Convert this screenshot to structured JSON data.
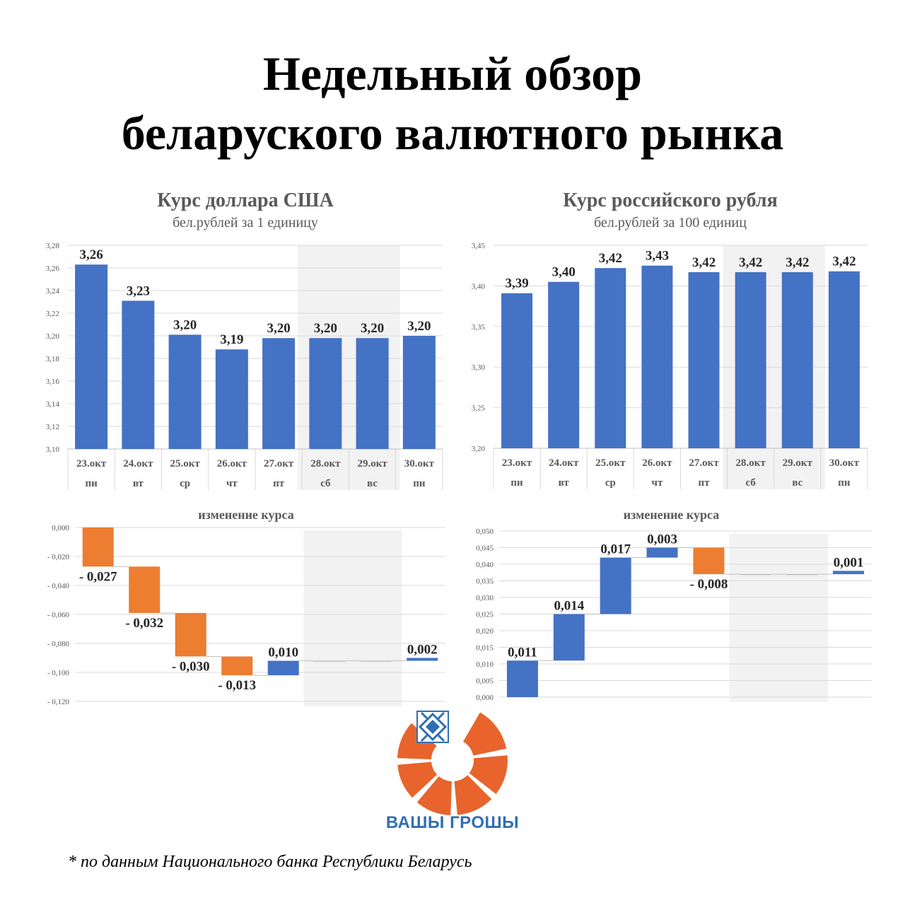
{
  "title_lines": [
    "Недельный обзор",
    "беларуского валютного рынка"
  ],
  "colors": {
    "bar": "#4472c4",
    "negative": "#ed7d31",
    "grid": "#d9d9d9",
    "weekend_shade": "#f2f2f2",
    "axis_text": "#595959",
    "logo_blue": "#2f6fb4",
    "logo_orange": "#e8642c"
  },
  "brand": {
    "name": "ВАШЫ ГРОШЫ"
  },
  "footnote": "* по данным Национального банка Республики Беларусь",
  "chart_data": [
    {
      "id": "usd-rate",
      "type": "bar",
      "title": "Курс доллара США",
      "subtitle": "бел.рублей за 1 единицу",
      "categories": [
        "23.окт",
        "24.окт",
        "25.окт",
        "26.окт",
        "27.окт",
        "28.окт",
        "29.окт",
        "30.окт"
      ],
      "weekdays": [
        "пн",
        "вт",
        "ср",
        "чт",
        "пт",
        "сб",
        "вс",
        "пн"
      ],
      "values": [
        3.263,
        3.231,
        3.201,
        3.188,
        3.198,
        3.198,
        3.198,
        3.2
      ],
      "labels": [
        "3,26",
        "3,23",
        "3,20",
        "3,19",
        "3,20",
        "3,20",
        "3,20",
        "3,20"
      ],
      "ylim": [
        3.1,
        3.28
      ],
      "yticks": [
        "3,10",
        "3,12",
        "3,14",
        "3,16",
        "3,18",
        "3,20",
        "3,22",
        "3,24",
        "3,26",
        "3,28"
      ],
      "ytick_values": [
        3.1,
        3.12,
        3.14,
        3.16,
        3.18,
        3.2,
        3.22,
        3.24,
        3.26,
        3.28
      ],
      "weekend_shaded": [
        5,
        6
      ],
      "grid": true
    },
    {
      "id": "rub-rate",
      "type": "bar",
      "title": "Курс российского рубля",
      "subtitle": "бел.рублей за 100 единиц",
      "categories": [
        "23.окт",
        "24.окт",
        "25.окт",
        "26.окт",
        "27.окт",
        "28.окт",
        "29.окт",
        "30.окт"
      ],
      "weekdays": [
        "пн",
        "вт",
        "ср",
        "чт",
        "пт",
        "сб",
        "вс",
        "пн"
      ],
      "values": [
        3.391,
        3.405,
        3.422,
        3.425,
        3.417,
        3.417,
        3.417,
        3.418
      ],
      "labels": [
        "3,39",
        "3,40",
        "3,42",
        "3,43",
        "3,42",
        "3,42",
        "3,42",
        "3,42"
      ],
      "ylim": [
        3.2,
        3.45
      ],
      "yticks": [
        "3,20",
        "3,25",
        "3,30",
        "3,35",
        "3,40",
        "3,45"
      ],
      "ytick_values": [
        3.2,
        3.25,
        3.3,
        3.35,
        3.4,
        3.45
      ],
      "weekend_shaded": [
        5,
        6
      ],
      "grid": true
    },
    {
      "id": "usd-change",
      "type": "waterfall",
      "title": "изменение курса",
      "changes": [
        -0.027,
        -0.032,
        -0.03,
        -0.013,
        0.01,
        0,
        0,
        0.002
      ],
      "labels": [
        "- 0,027",
        "- 0,032",
        "- 0,030",
        "- 0,013",
        "0,010",
        "",
        "",
        "0,002"
      ],
      "ylim": [
        -0.12,
        0
      ],
      "yticks": [
        "0,000",
        "- 0,020",
        "- 0,040",
        "- 0,060",
        "- 0,080",
        "- 0,100",
        "- 0,120"
      ],
      "ytick_values": [
        0,
        -0.02,
        -0.04,
        -0.06,
        -0.08,
        -0.1,
        -0.12
      ],
      "weekend_shaded": [
        5,
        6
      ],
      "grid": true
    },
    {
      "id": "rub-change",
      "type": "waterfall",
      "title": "изменение курса",
      "changes": [
        0.011,
        0.014,
        0.017,
        0.003,
        -0.008,
        0,
        0,
        0.001
      ],
      "labels": [
        "0,011",
        "0,014",
        "0,017",
        "0,003",
        "- 0,008",
        "",
        "",
        "0,001"
      ],
      "ylim": [
        0,
        0.05
      ],
      "yticks": [
        "0,000",
        "0,005",
        "0,010",
        "0,015",
        "0,020",
        "0,025",
        "0,030",
        "0,035",
        "0,040",
        "0,045",
        "0,050"
      ],
      "ytick_values": [
        0,
        0.005,
        0.01,
        0.015,
        0.02,
        0.025,
        0.03,
        0.035,
        0.04,
        0.045,
        0.05
      ],
      "weekend_shaded": [
        5,
        6
      ],
      "grid": true
    }
  ]
}
